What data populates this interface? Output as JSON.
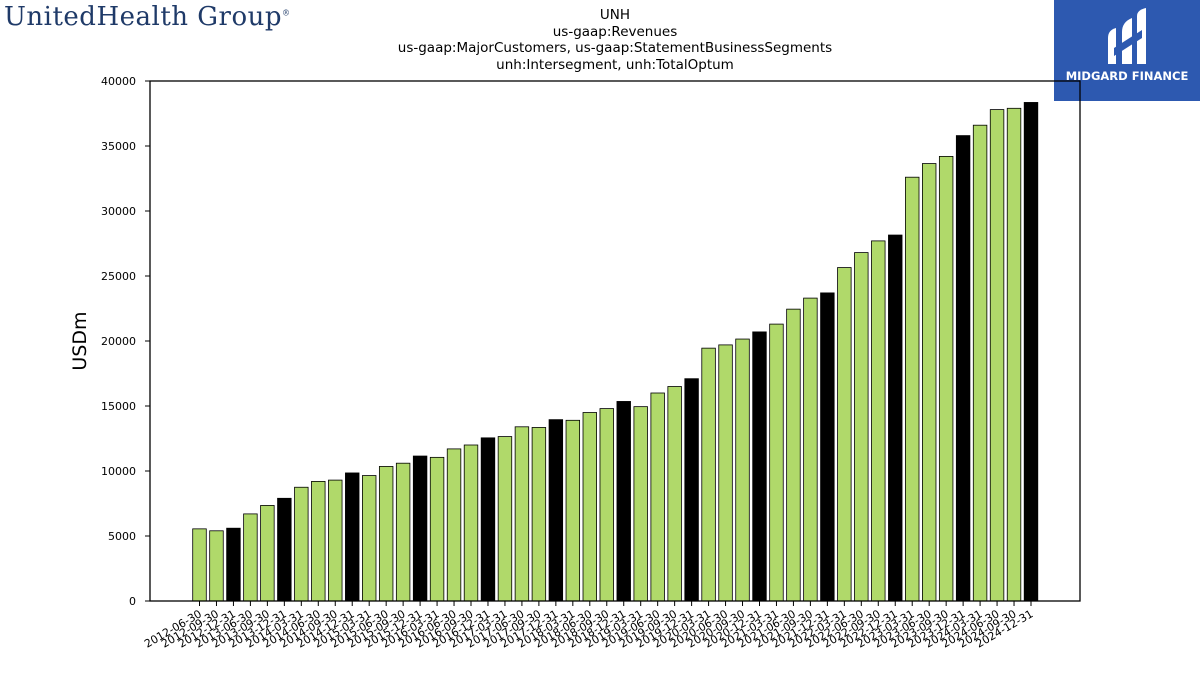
{
  "logos": {
    "left_brand": "UnitedHealth Group",
    "right_brand": "MIDGARD FINANCE"
  },
  "title_lines": [
    "UNH",
    "us-gaap:Revenues",
    "us-gaap:MajorCustomers, us-gaap:StatementBusinessSegments",
    "unh:Intersegment, unh:TotalOptum"
  ],
  "colors": {
    "bar_default": "#b0d96a",
    "bar_highlight": "#000000",
    "bar_edge": "#000000"
  },
  "chart_data": {
    "type": "bar",
    "ylabel": "USDm",
    "xlabel": "",
    "ylim": [
      0,
      40000
    ],
    "yticks": [
      0,
      5000,
      10000,
      15000,
      20000,
      25000,
      30000,
      35000,
      40000
    ],
    "grid": false,
    "categories": [
      "2012-06-30",
      "2012-09-30",
      "2012-12-31",
      "2013-06-30",
      "2013-09-30",
      "2013-12-31",
      "2014-03-31",
      "2014-06-30",
      "2014-09-30",
      "2014-12-31",
      "2015-03-31",
      "2015-06-30",
      "2015-09-30",
      "2015-12-31",
      "2016-03-31",
      "2016-06-30",
      "2016-09-30",
      "2016-12-31",
      "2017-03-31",
      "2017-06-30",
      "2017-09-30",
      "2017-12-31",
      "2018-03-31",
      "2018-06-30",
      "2018-09-30",
      "2018-12-31",
      "2019-03-31",
      "2019-06-30",
      "2019-09-30",
      "2019-12-31",
      "2020-03-31",
      "2020-06-30",
      "2020-09-30",
      "2020-12-31",
      "2021-03-31",
      "2021-06-30",
      "2021-09-30",
      "2021-12-31",
      "2022-03-31",
      "2022-06-30",
      "2022-09-30",
      "2022-12-31",
      "2023-03-31",
      "2023-06-30",
      "2023-09-30",
      "2023-12-31",
      "2024-03-31",
      "2024-06-30",
      "2024-09-30",
      "2024-12-31"
    ],
    "values": [
      5550,
      5400,
      5600,
      6700,
      7350,
      7900,
      8750,
      9200,
      9300,
      9850,
      9650,
      10350,
      10600,
      11150,
      11050,
      11700,
      12000,
      12550,
      12650,
      13400,
      13350,
      13950,
      13900,
      14500,
      14800,
      15350,
      14950,
      16000,
      16500,
      17100,
      19450,
      19700,
      20150,
      20700,
      21300,
      22450,
      23300,
      23700,
      25650,
      26800,
      27700,
      28150,
      32600,
      33650,
      34200,
      35800,
      36600,
      37800,
      37900,
      38350
    ],
    "highlight": [
      false,
      false,
      true,
      false,
      false,
      true,
      false,
      false,
      false,
      true,
      false,
      false,
      false,
      true,
      false,
      false,
      false,
      true,
      false,
      false,
      false,
      true,
      false,
      false,
      false,
      true,
      false,
      false,
      false,
      true,
      false,
      false,
      false,
      true,
      false,
      false,
      false,
      true,
      false,
      false,
      false,
      true,
      false,
      false,
      false,
      true,
      false,
      false,
      false,
      true
    ]
  }
}
